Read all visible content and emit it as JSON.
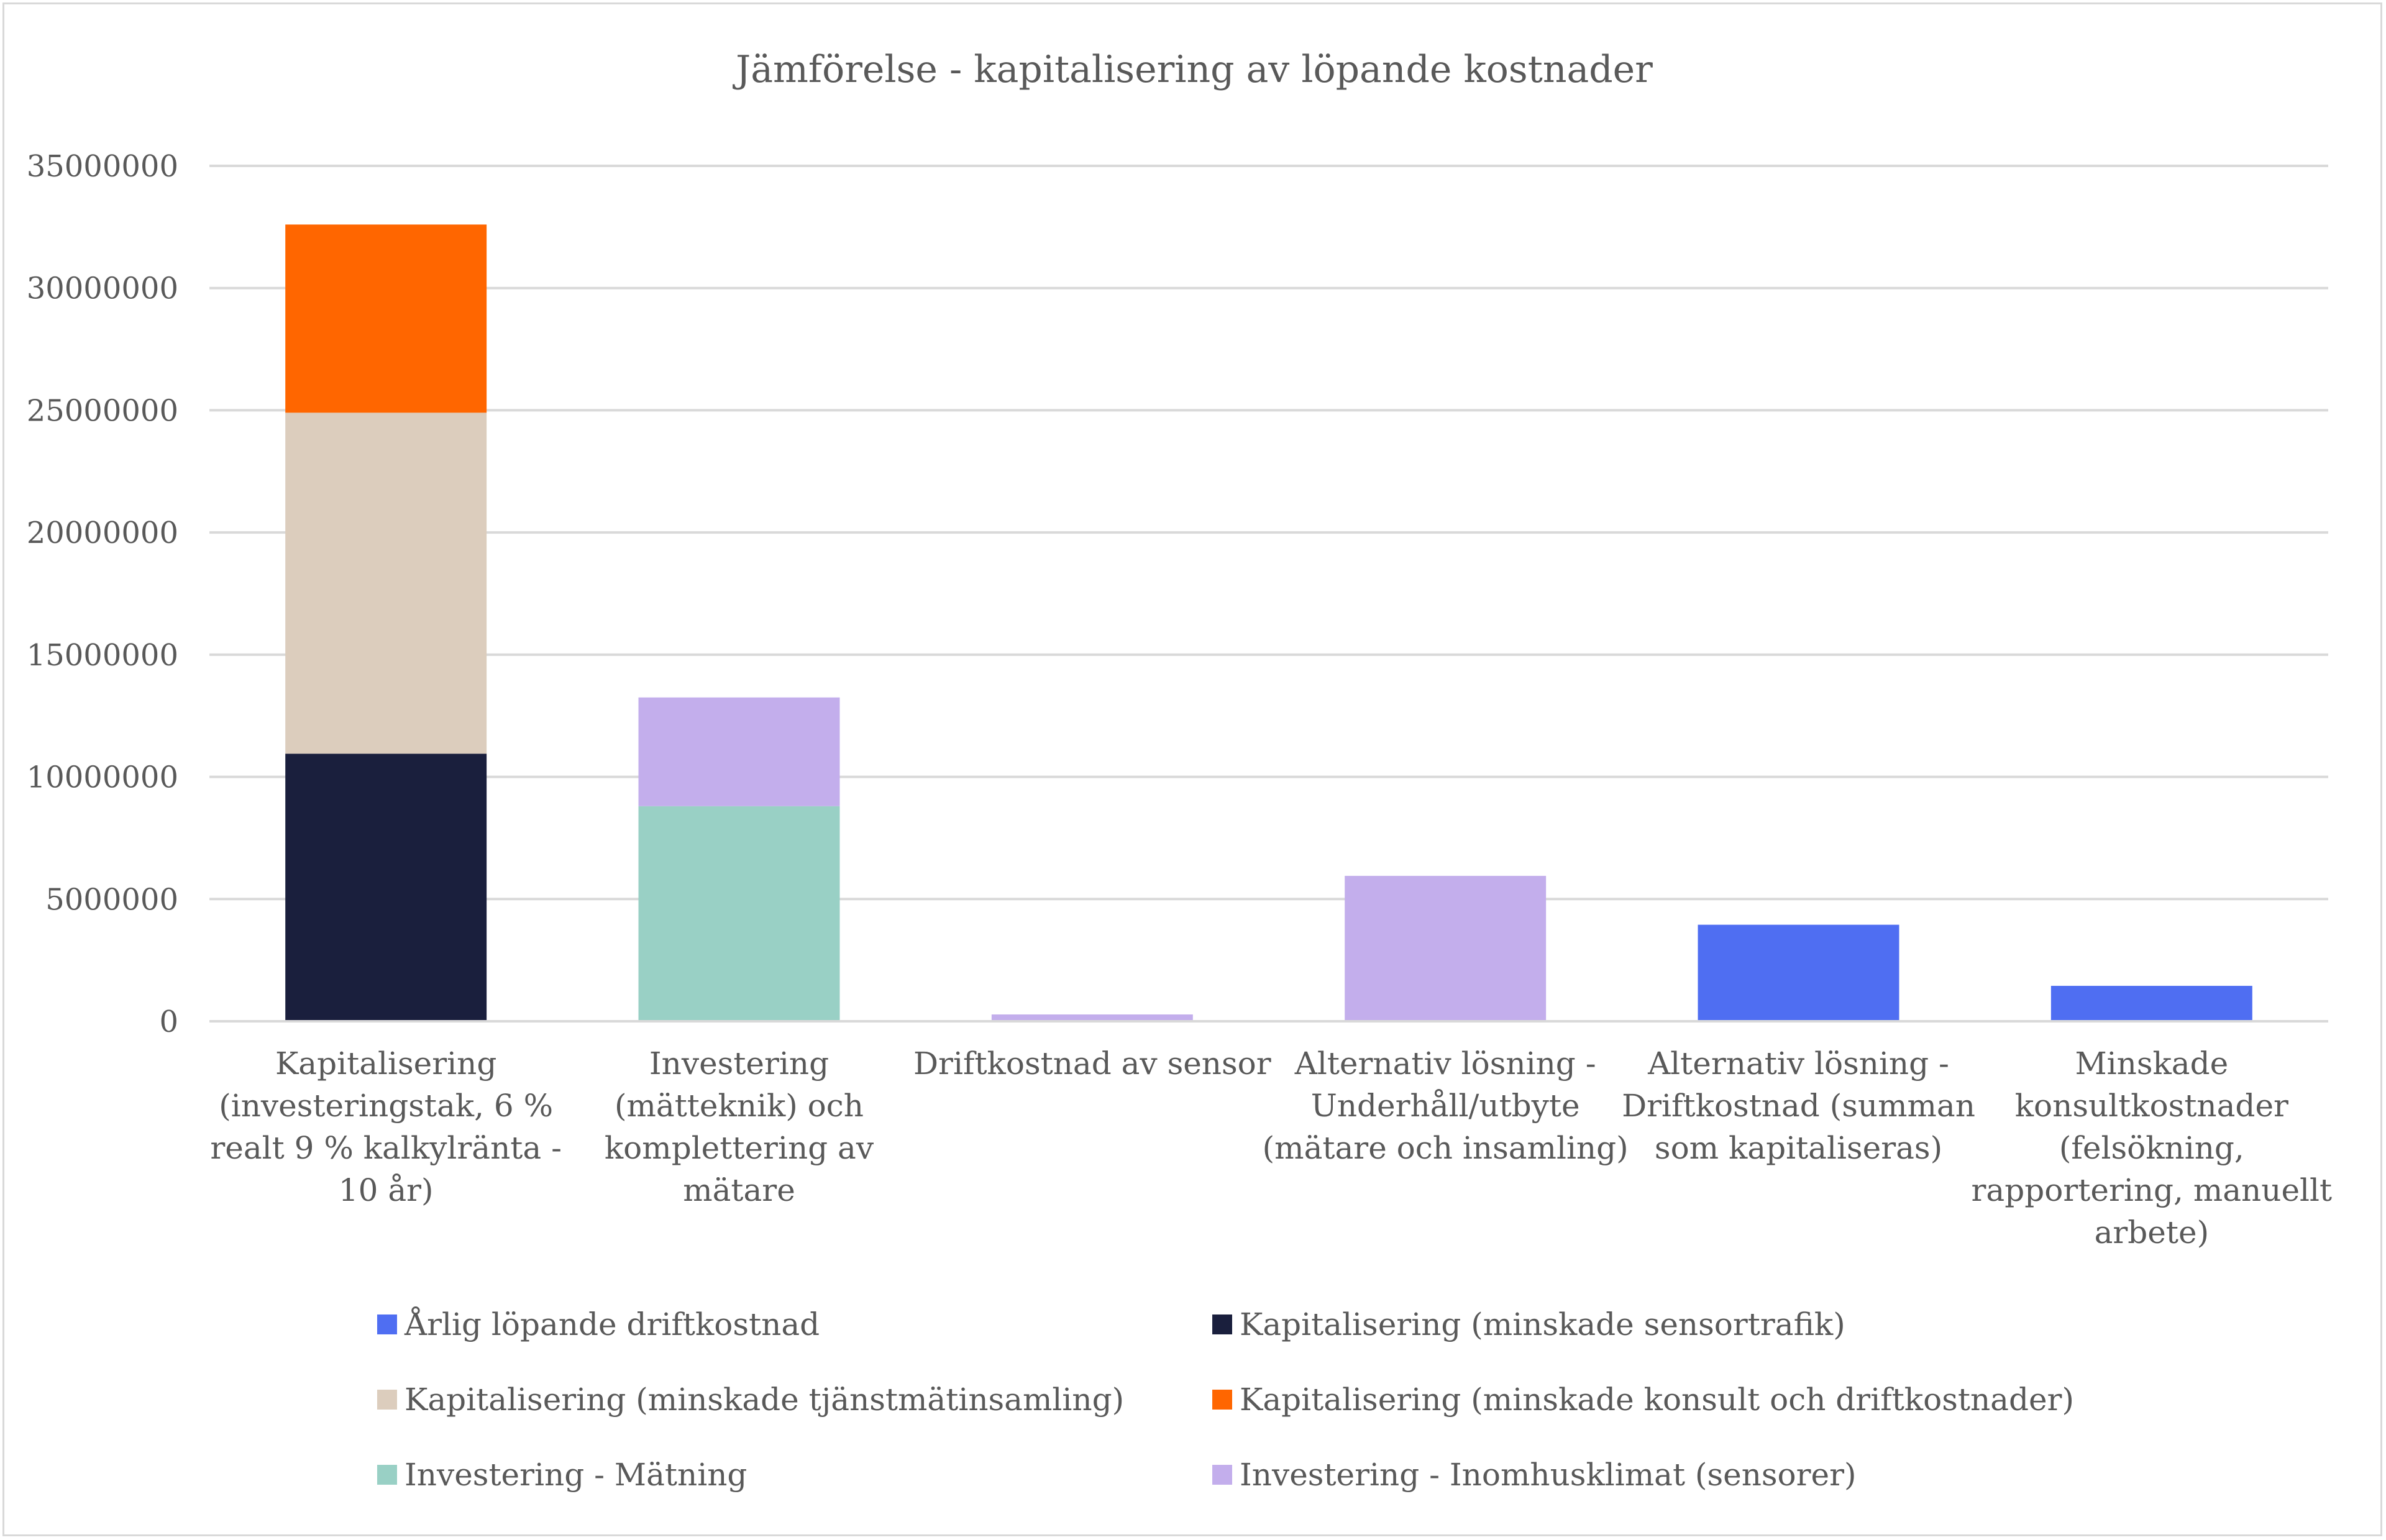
{
  "chart_data": {
    "type": "bar",
    "stacked": true,
    "title": "Jämförelse - kapitalisering av löpande kostnader",
    "xlabel": "",
    "ylabel": "",
    "ylim": [
      0,
      35000000
    ],
    "yticks": [
      0,
      5000000,
      10000000,
      15000000,
      20000000,
      25000000,
      30000000,
      35000000
    ],
    "grid": true,
    "legend_position": "bottom",
    "categories": [
      [
        "Kapitalisering",
        "(investeringstak, 6 %",
        "realt 9 % kalkylränta -",
        "10 år)"
      ],
      [
        "Investering",
        "(mätteknik) och",
        "komplettering av",
        "mätare"
      ],
      [
        "Driftkostnad av sensor"
      ],
      [
        "Alternativ lösning -",
        "Underhåll/utbyte",
        "(mätare och insamling)"
      ],
      [
        "Alternativ lösning -",
        "Driftkostnad (summan",
        "som kapitaliseras)"
      ],
      [
        "Minskade",
        "konsultkostnader",
        "(felsökning,",
        "rapportering, manuellt",
        "arbete)"
      ]
    ],
    "series": [
      {
        "name": "Årlig löpande driftkostnad",
        "color": "#4f6ef2",
        "values": [
          0,
          0,
          0,
          0,
          3950000,
          1450000
        ]
      },
      {
        "name": "Kapitalisering (minskade sensortrafik)",
        "color": "#1a1f3d",
        "values": [
          10950000,
          0,
          0,
          0,
          0,
          0
        ]
      },
      {
        "name": "Kapitalisering (minskade tjänstmätinsamling)",
        "color": "#dccdbd",
        "values": [
          13950000,
          0,
          0,
          0,
          0,
          0
        ]
      },
      {
        "name": "Kapitalisering (minskade konsult och driftkostnader)",
        "color": "#ff6600",
        "values": [
          7700000,
          0,
          0,
          0,
          0,
          0
        ]
      },
      {
        "name": "Investering - Mätning",
        "color": "#99d0c5",
        "values": [
          0,
          8800000,
          0,
          0,
          0,
          0
        ]
      },
      {
        "name": "Investering - Inomhusklimat (sensorer)",
        "color": "#c3aeec",
        "values": [
          0,
          4450000,
          280000,
          5950000,
          0,
          0
        ]
      }
    ]
  }
}
